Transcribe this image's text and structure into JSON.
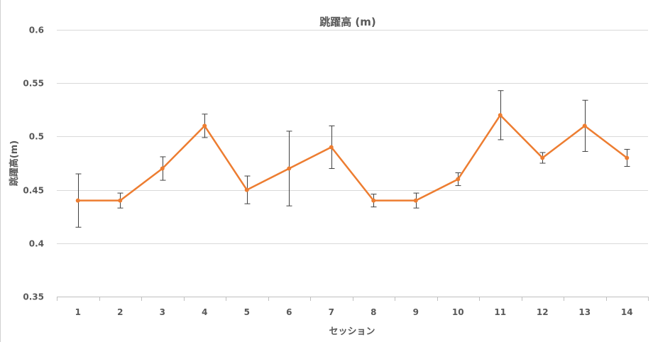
{
  "chart_data": {
    "type": "line",
    "title": "跳躍高 (m)",
    "xlabel": "セッション",
    "ylabel": "跳躍高(m)",
    "categories": [
      "1",
      "2",
      "3",
      "4",
      "5",
      "6",
      "7",
      "8",
      "9",
      "10",
      "11",
      "12",
      "13",
      "14"
    ],
    "series": [
      {
        "values": [
          0.44,
          0.44,
          0.47,
          0.51,
          0.45,
          0.47,
          0.49,
          0.44,
          0.44,
          0.46,
          0.52,
          0.48,
          0.51,
          0.48
        ],
        "error": [
          0.025,
          0.007,
          0.011,
          0.011,
          0.013,
          0.035,
          0.02,
          0.006,
          0.007,
          0.006,
          0.023,
          0.005,
          0.024,
          0.008
        ],
        "color": "#ed7d31"
      }
    ],
    "ylim": [
      0.35,
      0.6
    ],
    "yticks": [
      "0.35",
      "0.4",
      "0.45",
      "0.5",
      "0.55",
      "0.6"
    ],
    "grid": true,
    "legend": "none"
  }
}
